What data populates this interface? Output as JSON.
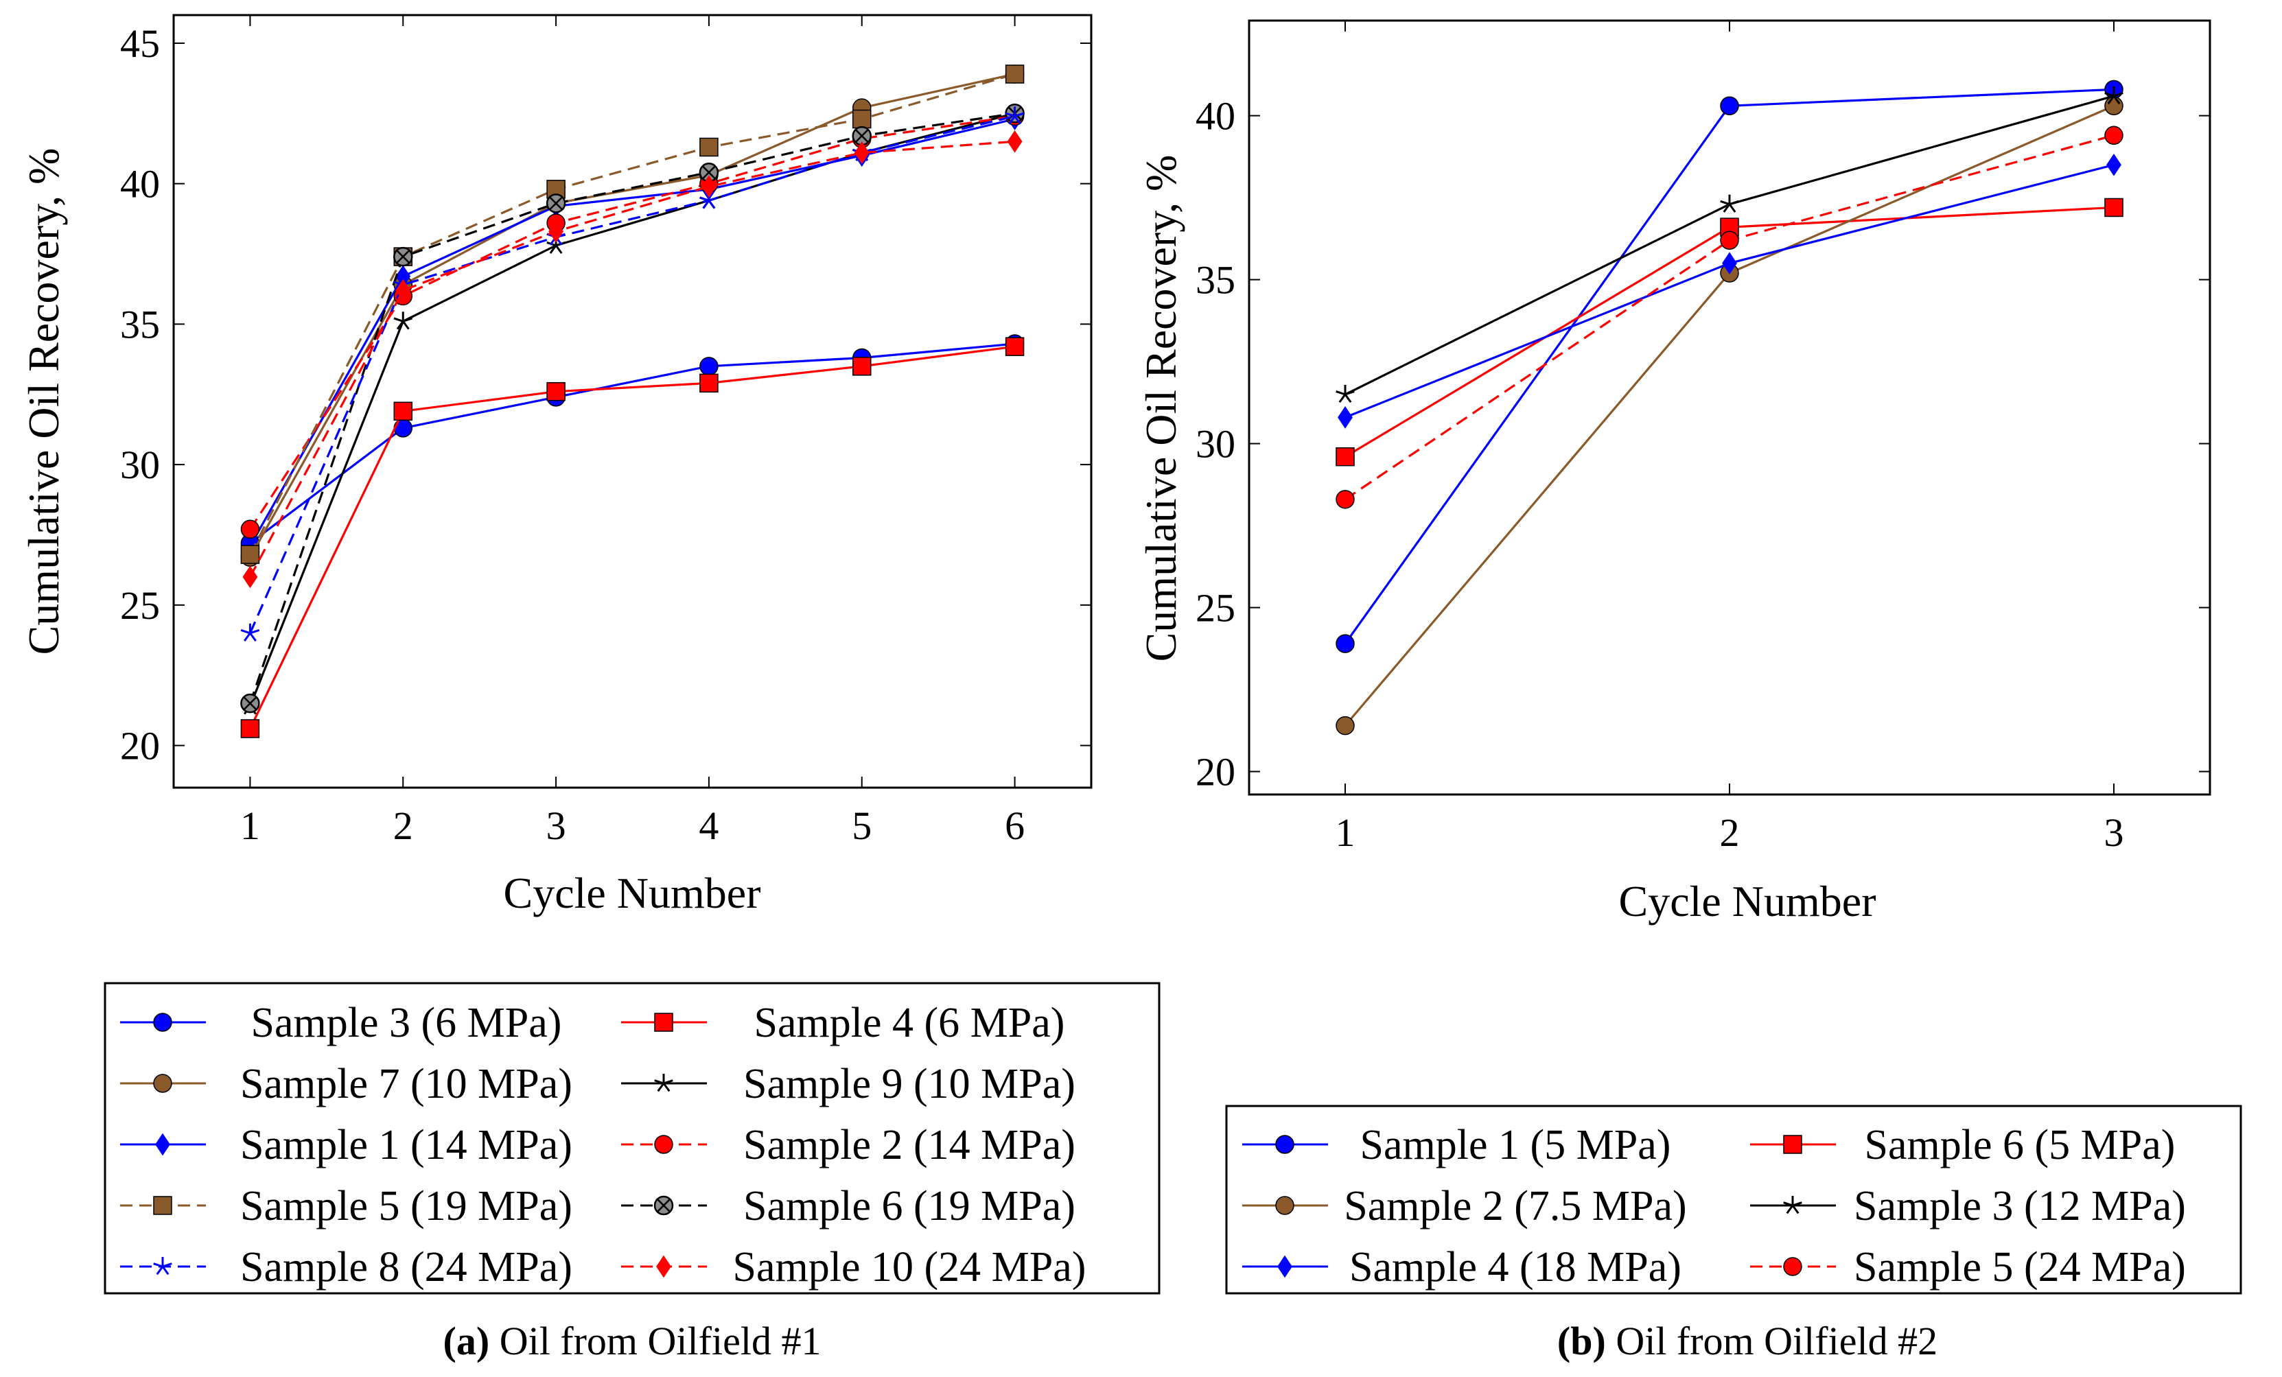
{
  "chart_data": [
    {
      "type": "line",
      "id": "a",
      "caption_label": "(a)",
      "caption_text": " Oil from Oilfield #1",
      "xlabel": "Cycle Number",
      "ylabel": "Cumulative Oil Recovery, %",
      "xlim": [
        0.5,
        6.5
      ],
      "ylim": [
        18.5,
        46
      ],
      "xticks": [
        1,
        2,
        3,
        4,
        5,
        6
      ],
      "yticks": [
        20,
        25,
        30,
        35,
        40,
        45
      ],
      "x": [
        1,
        2,
        3,
        4,
        5,
        6
      ],
      "series": [
        {
          "name": "Sample 3 (6 MPa)",
          "color": "#0000ff",
          "dash": "solid",
          "marker": "circle",
          "values": [
            27.2,
            31.3,
            32.4,
            33.5,
            33.8,
            34.3
          ]
        },
        {
          "name": "Sample 4 (6 MPa)",
          "color": "#ff0000",
          "dash": "solid",
          "marker": "square",
          "values": [
            20.6,
            31.9,
            32.6,
            32.9,
            33.5,
            34.2
          ]
        },
        {
          "name": "Sample 7 (10 MPa)",
          "color": "#8b5a2b",
          "dash": "solid",
          "marker": "circle",
          "values": [
            26.7,
            36.4,
            39.3,
            40.3,
            42.7,
            43.9
          ]
        },
        {
          "name": "Sample 9 (10 MPa)",
          "color": "#000000",
          "dash": "solid",
          "marker": "star",
          "values": [
            21.4,
            35.1,
            37.8,
            39.4,
            41.1,
            42.5
          ]
        },
        {
          "name": "Sample 1 (14 MPa)",
          "color": "#0000ff",
          "dash": "solid",
          "marker": "diamond",
          "values": [
            27.1,
            36.7,
            39.2,
            39.8,
            41.0,
            42.3
          ]
        },
        {
          "name": "Sample 2 (14 MPa)",
          "color": "#ff0000",
          "dash": "dashed",
          "marker": "circle",
          "values": [
            27.7,
            36.0,
            38.6,
            40.0,
            41.6,
            42.4
          ]
        },
        {
          "name": "Sample 5 (19 MPa)",
          "color": "#8b5a2b",
          "dash": "dashed",
          "marker": "square",
          "values": [
            26.8,
            37.4,
            39.8,
            41.3,
            42.3,
            43.9
          ]
        },
        {
          "name": "Sample 6 (19 MPa)",
          "color": "#000000",
          "dash": "dashed",
          "marker": "otimes",
          "values": [
            21.5,
            37.4,
            39.3,
            40.4,
            41.7,
            42.5
          ]
        },
        {
          "name": "Sample 8 (24 MPa)",
          "color": "#0000ff",
          "dash": "dashed",
          "marker": "star",
          "values": [
            24.0,
            36.4,
            38.1,
            39.4,
            41.1,
            42.4
          ]
        },
        {
          "name": "Sample 10 (24 MPa)",
          "color": "#ff0000",
          "dash": "dashed",
          "marker": "diamond",
          "values": [
            26.0,
            36.2,
            38.3,
            39.9,
            41.1,
            41.5
          ]
        }
      ],
      "legend_position": "below"
    },
    {
      "type": "line",
      "id": "b",
      "caption_label": "(b)",
      "caption_text": " Oil from Oilfield #2",
      "xlabel": "Cycle Number",
      "ylabel": "Cumulative Oil Recovery, %",
      "xlim": [
        0.75,
        3.25
      ],
      "ylim": [
        19.3,
        42.9
      ],
      "xticks": [
        1,
        2,
        3
      ],
      "yticks": [
        20,
        25,
        30,
        35,
        40
      ],
      "x": [
        1,
        2,
        3
      ],
      "series": [
        {
          "name": "Sample 1 (5 MPa)",
          "color": "#0000ff",
          "dash": "solid",
          "marker": "circle",
          "values": [
            23.9,
            40.3,
            40.8
          ]
        },
        {
          "name": "Sample 6 (5 MPa)",
          "color": "#ff0000",
          "dash": "solid",
          "marker": "square",
          "values": [
            29.6,
            36.6,
            37.2
          ]
        },
        {
          "name": "Sample 2 (7.5 MPa)",
          "color": "#8b5a2b",
          "dash": "solid",
          "marker": "circle",
          "values": [
            21.4,
            35.2,
            40.3
          ]
        },
        {
          "name": "Sample 3 (12 MPa)",
          "color": "#000000",
          "dash": "solid",
          "marker": "star",
          "values": [
            31.5,
            37.3,
            40.6
          ]
        },
        {
          "name": "Sample 4 (18 MPa)",
          "color": "#0000ff",
          "dash": "solid",
          "marker": "diamond",
          "values": [
            30.8,
            35.5,
            38.5
          ]
        },
        {
          "name": "Sample 5 (24 MPa)",
          "color": "#ff0000",
          "dash": "dashed",
          "marker": "circle",
          "values": [
            28.3,
            36.2,
            39.4
          ]
        }
      ],
      "legend_position": "below"
    }
  ]
}
